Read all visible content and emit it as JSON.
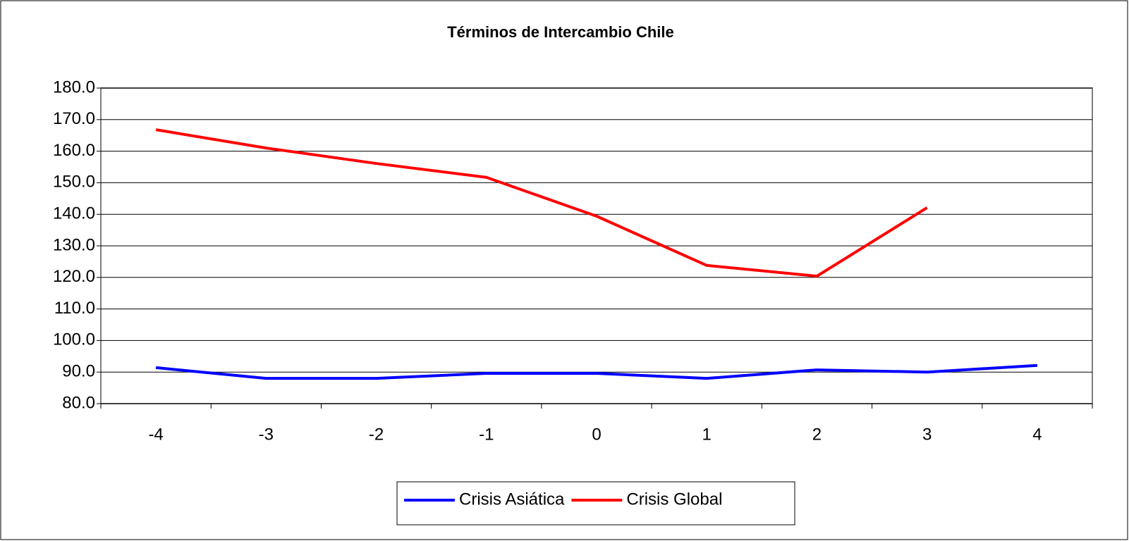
{
  "chart_data": {
    "type": "line",
    "title": "Términos de Intercambio Chile",
    "categories": [
      "-4",
      "-3",
      "-2",
      "-1",
      "0",
      "1",
      "2",
      "3",
      "4"
    ],
    "series": [
      {
        "name": "Crisis Asiática",
        "color": "#0000ff",
        "values": [
          91.4,
          88.0,
          88.0,
          89.6,
          89.6,
          88.0,
          90.7,
          90.0,
          92.1
        ]
      },
      {
        "name": "Crisis Global",
        "color": "#ff0000",
        "values": [
          166.8,
          161.0,
          156.1,
          151.7,
          139.4,
          123.8,
          120.4,
          142.1,
          null
        ]
      }
    ],
    "ylim": [
      80,
      180
    ],
    "yticks": [
      {
        "value": 80,
        "label": "80.0"
      },
      {
        "value": 90,
        "label": "90.0"
      },
      {
        "value": 100,
        "label": "100.0"
      },
      {
        "value": 110,
        "label": "110.0"
      },
      {
        "value": 120,
        "label": "120.0"
      },
      {
        "value": 130,
        "label": "130.0"
      },
      {
        "value": 140,
        "label": "140.0"
      },
      {
        "value": 150,
        "label": "150.0"
      },
      {
        "value": 160,
        "label": "160.0"
      },
      {
        "value": 170,
        "label": "170.0"
      },
      {
        "value": 180,
        "label": "180.0"
      }
    ],
    "grid": true,
    "legend": "bottom"
  }
}
